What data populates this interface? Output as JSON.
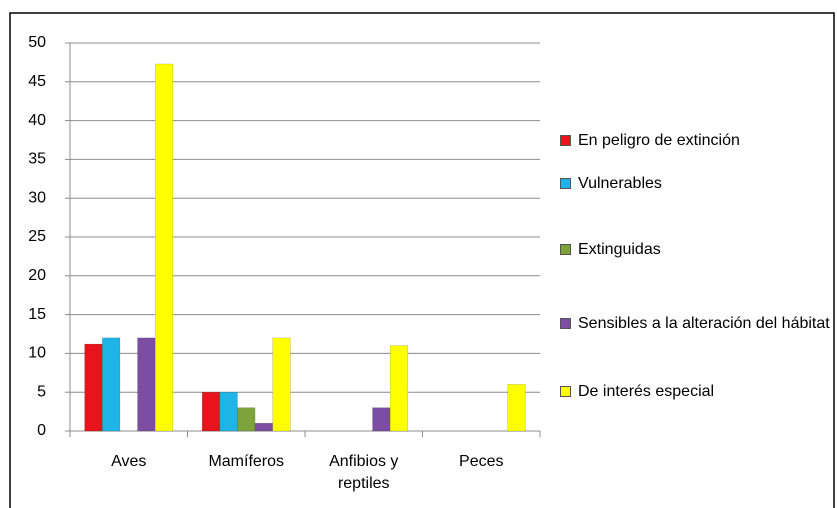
{
  "chart_data": {
    "type": "bar",
    "categories": [
      "Aves",
      "Mamíferos",
      "Anfibios y reptiles",
      "Peces"
    ],
    "series": [
      {
        "name": "En peligro de extinción",
        "color": "#e8141b",
        "values": [
          11.2,
          5,
          0,
          0
        ]
      },
      {
        "name": "Vulnerables",
        "color": "#1fb4e8",
        "values": [
          12,
          5,
          0,
          0
        ]
      },
      {
        "name": "Extinguidas",
        "color": "#7ea33b",
        "values": [
          0,
          3,
          0,
          0
        ]
      },
      {
        "name": "Sensibles a la alteración del hábitat",
        "color": "#7b4ea3",
        "values": [
          12,
          1,
          3,
          0
        ]
      },
      {
        "name": "De interés especial",
        "color": "#ffff00",
        "values": [
          47.3,
          12,
          11,
          6
        ]
      }
    ],
    "ylim": [
      0,
      50
    ],
    "yticks": [
      0,
      5,
      10,
      15,
      20,
      25,
      30,
      35,
      40,
      45,
      50
    ],
    "grid": true,
    "legend": "right"
  }
}
